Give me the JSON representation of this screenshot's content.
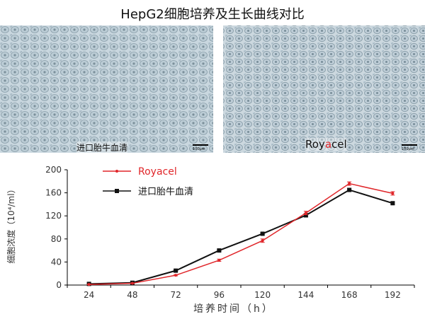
{
  "title": "HepG2细胞培养及生长曲线对比",
  "panels": [
    {
      "label": "进口胎牛血清",
      "scale": "100μm"
    },
    {
      "label_prefix": "Roy",
      "label_highlight": "a",
      "label_suffix": "cel",
      "scale": "100μm"
    }
  ],
  "colors": {
    "royacel": "#e0262a",
    "import_fbs": "#111111",
    "cells_bg": "#c9d6de"
  },
  "chart_data": {
    "type": "line",
    "ylabel": "细胞浓度（10⁴/ml）",
    "xlabel": "培养时间（h）",
    "categories": [
      "24",
      "48",
      "72",
      "96",
      "120",
      "144",
      "168",
      "192"
    ],
    "yticks": [
      "0",
      "40",
      "80",
      "120",
      "160",
      "200"
    ],
    "ylim": [
      0,
      200
    ],
    "legend_position": "top-left",
    "series": [
      {
        "name": "Royacel",
        "values": [
          1,
          3,
          17,
          43,
          77,
          125,
          176,
          159
        ],
        "errors": [
          0.5,
          0.5,
          1,
          2,
          3,
          3,
          3,
          3
        ]
      },
      {
        "name": "进口胎牛血清",
        "values": [
          2,
          4,
          25,
          60,
          89,
          121,
          165,
          142
        ],
        "errors": [
          0.5,
          0.5,
          1,
          2,
          2,
          3,
          3,
          2
        ]
      }
    ]
  }
}
